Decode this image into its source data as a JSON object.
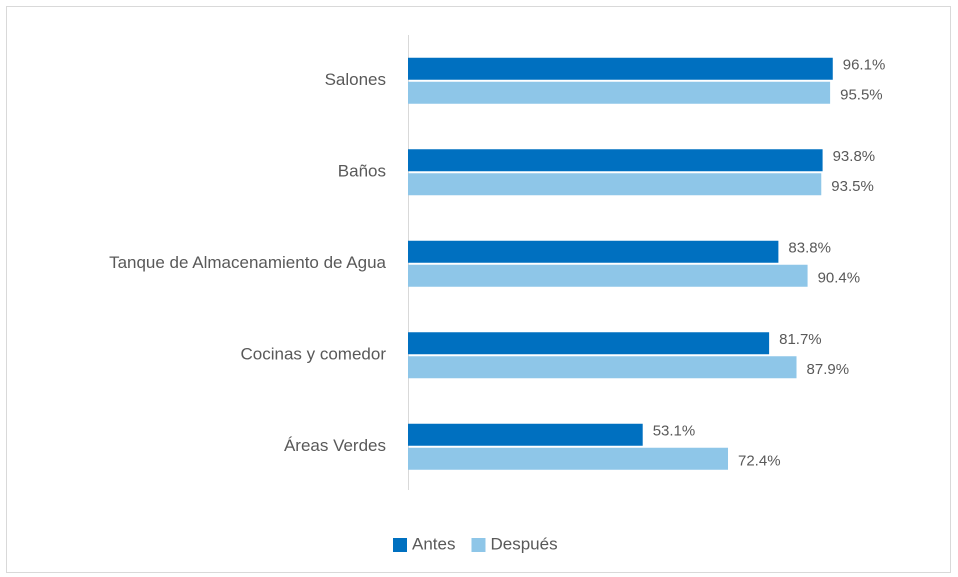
{
  "chart_data": {
    "type": "hbar",
    "categories": [
      "Salones",
      "Baños",
      "Tanque de Almacenamiento de Agua",
      "Cocinas y comedor",
      "Áreas Verdes"
    ],
    "series": [
      {
        "name": "Antes",
        "color": "#0070c0",
        "values": [
          96.1,
          93.8,
          83.8,
          81.7,
          53.1
        ],
        "value_labels": [
          "96.1%",
          "93.8%",
          "83.8%",
          "81.7%",
          "53.1%"
        ]
      },
      {
        "name": "Después",
        "color": "#8ec6e8",
        "values": [
          95.5,
          93.5,
          90.4,
          87.9,
          72.4
        ],
        "value_labels": [
          "95.5%",
          "93.5%",
          "90.4%",
          "87.9%",
          "72.4%"
        ]
      }
    ],
    "xlim": [
      0,
      100
    ],
    "legend": "bottom"
  }
}
